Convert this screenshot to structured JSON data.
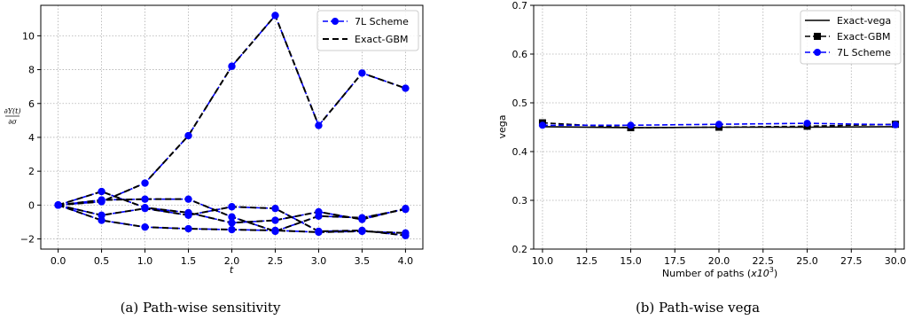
{
  "chart_data": [
    {
      "type": "line",
      "caption": "(a) Path-wise sensitivity",
      "xlabel": "t",
      "ylabel": "∂Y(t)/∂σ",
      "ylabel_num": "∂Y(t)",
      "ylabel_den": "∂σ",
      "xlim": [
        -0.2,
        4.2
      ],
      "ylim": [
        -2.6,
        11.8
      ],
      "xticks": [
        "0.0",
        "0.5",
        "1.0",
        "1.5",
        "2.0",
        "2.5",
        "3.0",
        "3.5",
        "4.0"
      ],
      "yticks": [
        "−2",
        "0",
        "2",
        "4",
        "6",
        "8",
        "10"
      ],
      "grid": true,
      "legend_position": "top-right",
      "x": [
        0.0,
        0.5,
        1.0,
        1.5,
        2.0,
        2.5,
        3.0,
        3.5,
        4.0
      ],
      "series": [
        {
          "name": "7L Scheme",
          "style": "blue-dashed-circle",
          "paths": [
            [
              0,
              0.2,
              1.3,
              4.1,
              8.2,
              11.2,
              4.7,
              7.8,
              6.9
            ],
            [
              0,
              0.8,
              -0.15,
              -0.45,
              -1.05,
              -0.9,
              -0.4,
              -0.85,
              -0.2
            ],
            [
              0,
              0.3,
              0.35,
              0.35,
              -0.7,
              -1.55,
              -0.65,
              -0.75,
              -0.25
            ],
            [
              0,
              -0.6,
              -0.2,
              -0.6,
              -0.1,
              -0.2,
              -1.55,
              -1.5,
              -1.8
            ],
            [
              0,
              -0.9,
              -1.3,
              -1.4,
              -1.45,
              -1.5,
              -1.6,
              -1.55,
              -1.65
            ]
          ]
        },
        {
          "name": "Exact-GBM",
          "style": "black-dashed",
          "paths": [
            [
              0,
              0.2,
              1.3,
              4.1,
              8.2,
              11.2,
              4.7,
              7.8,
              6.9
            ],
            [
              0,
              0.8,
              -0.15,
              -0.45,
              -1.05,
              -0.9,
              -0.4,
              -0.85,
              -0.2
            ],
            [
              0,
              0.3,
              0.35,
              0.35,
              -0.7,
              -1.55,
              -0.65,
              -0.75,
              -0.25
            ],
            [
              0,
              -0.6,
              -0.2,
              -0.6,
              -0.1,
              -0.2,
              -1.55,
              -1.5,
              -1.8
            ],
            [
              0,
              -0.9,
              -1.3,
              -1.4,
              -1.45,
              -1.5,
              -1.6,
              -1.55,
              -1.65
            ]
          ]
        }
      ]
    },
    {
      "type": "line",
      "caption": "(b) Path-wise vega",
      "xlabel_pre": "Number of paths (",
      "xlabel_var": "x10",
      "xlabel_exp": "3",
      "xlabel_post": ")",
      "ylabel": "vega",
      "xlim": [
        9.5,
        30.5
      ],
      "ylim": [
        0.2,
        0.7
      ],
      "xticks": [
        "10.0",
        "12.5",
        "15.0",
        "17.5",
        "20.0",
        "22.5",
        "25.0",
        "27.5",
        "30.0"
      ],
      "xtick_values": [
        10.0,
        12.5,
        15.0,
        17.5,
        20.0,
        22.5,
        25.0,
        27.5,
        30.0
      ],
      "yticks": [
        "0.2",
        "0.3",
        "0.4",
        "0.5",
        "0.6",
        "0.7"
      ],
      "ytick_values": [
        0.2,
        0.3,
        0.4,
        0.5,
        0.6,
        0.7
      ],
      "grid": true,
      "legend_position": "top-right",
      "x": [
        10,
        15,
        20,
        25,
        30
      ],
      "series": [
        {
          "name": "Exact-vega",
          "style": "black-solid",
          "values": [
            0.451,
            0.449,
            0.45,
            0.45,
            0.451
          ]
        },
        {
          "name": "Exact-GBM",
          "style": "black-dashed-square",
          "values": [
            0.459,
            0.449,
            0.45,
            0.452,
            0.456
          ]
        },
        {
          "name": "7L Scheme",
          "style": "blue-dashed-circle",
          "values": [
            0.454,
            0.454,
            0.456,
            0.458,
            0.455
          ]
        }
      ]
    }
  ],
  "colors": {
    "blue": "#0000ff",
    "black": "#000000",
    "grid": "#b0b0b0"
  }
}
